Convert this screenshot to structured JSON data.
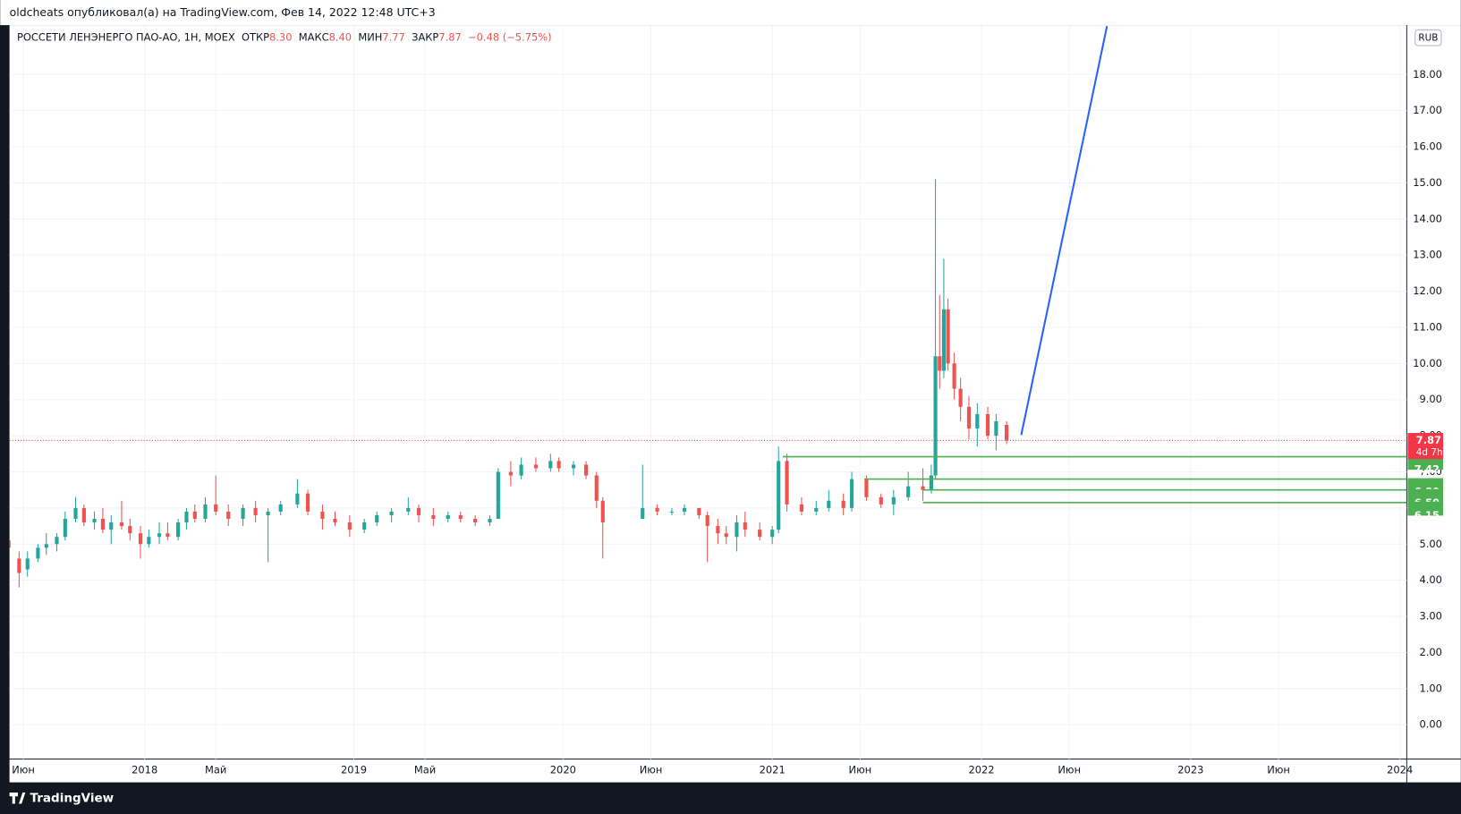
{
  "header": "oldcheats опубликовал(а) на TradingView.com, Фев 14, 2022 12:48 UTC+3",
  "footer": "TradingView",
  "chart_data": {
    "type": "candlestick",
    "title": "РОССЕТИ ЛЕНЭНЕРГО ПАО-АО, 1Н, MOEX",
    "legend": {
      "labels": [
        "ОТКР",
        "МАКС",
        "МИН",
        "ЗАКР"
      ],
      "values": [
        "8.30",
        "8.40",
        "7.77",
        "7.87"
      ],
      "change": "−0.48 (−5.75%)"
    },
    "currency": "RUB",
    "up_color": "#26a69a",
    "down_color": "#ef5350",
    "grid": true,
    "xlim": [
      2017.354,
      2024.033
    ],
    "xticks": [
      {
        "value": 2017.42,
        "label": "Июн"
      },
      {
        "value": 2018,
        "label": "2018"
      },
      {
        "value": 2018.34,
        "label": "Май"
      },
      {
        "value": 2019,
        "label": "2019"
      },
      {
        "value": 2019.34,
        "label": "Май"
      },
      {
        "value": 2020,
        "label": "2020"
      },
      {
        "value": 2020.42,
        "label": "Июн"
      },
      {
        "value": 2021,
        "label": "2021"
      },
      {
        "value": 2021.42,
        "label": "Июн"
      },
      {
        "value": 2022,
        "label": "2022"
      },
      {
        "value": 2022.42,
        "label": "Июн"
      },
      {
        "value": 2023,
        "label": "2023"
      },
      {
        "value": 2023.42,
        "label": "Июн"
      },
      {
        "value": 2024,
        "label": "2024"
      }
    ],
    "ylim": [
      -0.95,
      19.34
    ],
    "yticks": [
      {
        "value": 0,
        "label": "0.00"
      },
      {
        "value": 1,
        "label": "1.00"
      },
      {
        "value": 2,
        "label": "2.00"
      },
      {
        "value": 3,
        "label": "3.00"
      },
      {
        "value": 4,
        "label": "4.00"
      },
      {
        "value": 5,
        "label": "5.00"
      },
      {
        "value": 6,
        "label": "6.00"
      },
      {
        "value": 7,
        "label": "7.00"
      },
      {
        "value": 8,
        "label": "8.00"
      },
      {
        "value": 9,
        "label": "9.00"
      },
      {
        "value": 10,
        "label": "10.00"
      },
      {
        "value": 11,
        "label": "11.00"
      },
      {
        "value": 12,
        "label": "12.00"
      },
      {
        "value": 13,
        "label": "13.00"
      },
      {
        "value": 14,
        "label": "14.00"
      },
      {
        "value": 15,
        "label": "15.00"
      },
      {
        "value": 16,
        "label": "16.00"
      },
      {
        "value": 17,
        "label": "17.00"
      },
      {
        "value": 18,
        "label": "18.00"
      }
    ],
    "candles": [
      {
        "x": 2017.35,
        "open": 5.1,
        "high": 5.2,
        "low": 4.7,
        "close": 4.9
      },
      {
        "x": 2017.4,
        "open": 4.6,
        "high": 4.8,
        "low": 3.8,
        "close": 4.2
      },
      {
        "x": 2017.44,
        "open": 4.3,
        "high": 4.8,
        "low": 4.1,
        "close": 4.6
      },
      {
        "x": 2017.49,
        "open": 4.6,
        "high": 5.0,
        "low": 4.5,
        "close": 4.9
      },
      {
        "x": 2017.53,
        "open": 4.9,
        "high": 5.3,
        "low": 4.7,
        "close": 5.0
      },
      {
        "x": 2017.58,
        "open": 5.0,
        "high": 5.3,
        "low": 4.8,
        "close": 5.2
      },
      {
        "x": 2017.62,
        "open": 5.2,
        "high": 5.9,
        "low": 5.1,
        "close": 5.7
      },
      {
        "x": 2017.67,
        "open": 5.7,
        "high": 6.3,
        "low": 5.6,
        "close": 6.0
      },
      {
        "x": 2017.71,
        "open": 6.0,
        "high": 6.1,
        "low": 5.5,
        "close": 5.6
      },
      {
        "x": 2017.76,
        "open": 5.6,
        "high": 5.9,
        "low": 5.4,
        "close": 5.7
      },
      {
        "x": 2017.8,
        "open": 5.7,
        "high": 6.0,
        "low": 5.3,
        "close": 5.4
      },
      {
        "x": 2017.84,
        "open": 5.4,
        "high": 5.8,
        "low": 5.0,
        "close": 5.6
      },
      {
        "x": 2017.89,
        "open": 5.6,
        "high": 6.2,
        "low": 5.4,
        "close": 5.5
      },
      {
        "x": 2017.93,
        "open": 5.5,
        "high": 5.7,
        "low": 5.1,
        "close": 5.3
      },
      {
        "x": 2017.98,
        "open": 5.3,
        "high": 5.5,
        "low": 4.6,
        "close": 5.0
      },
      {
        "x": 2018.02,
        "open": 5.0,
        "high": 5.4,
        "low": 4.9,
        "close": 5.2
      },
      {
        "x": 2018.07,
        "open": 5.2,
        "high": 5.6,
        "low": 5.0,
        "close": 5.3
      },
      {
        "x": 2018.11,
        "open": 5.3,
        "high": 5.6,
        "low": 5.1,
        "close": 5.2
      },
      {
        "x": 2018.16,
        "open": 5.2,
        "high": 5.7,
        "low": 5.1,
        "close": 5.6
      },
      {
        "x": 2018.2,
        "open": 5.6,
        "high": 6.0,
        "low": 5.4,
        "close": 5.9
      },
      {
        "x": 2018.24,
        "open": 5.9,
        "high": 6.1,
        "low": 5.6,
        "close": 5.7
      },
      {
        "x": 2018.29,
        "open": 5.7,
        "high": 6.3,
        "low": 5.6,
        "close": 6.1
      },
      {
        "x": 2018.34,
        "open": 6.1,
        "high": 6.9,
        "low": 5.8,
        "close": 5.9
      },
      {
        "x": 2018.4,
        "open": 5.9,
        "high": 6.1,
        "low": 5.5,
        "close": 5.7
      },
      {
        "x": 2018.47,
        "open": 5.7,
        "high": 6.1,
        "low": 5.5,
        "close": 6.0
      },
      {
        "x": 2018.53,
        "open": 6.0,
        "high": 6.2,
        "low": 5.6,
        "close": 5.8
      },
      {
        "x": 2018.59,
        "open": 5.8,
        "high": 6.0,
        "low": 4.5,
        "close": 5.9
      },
      {
        "x": 2018.65,
        "open": 5.9,
        "high": 6.2,
        "low": 5.8,
        "close": 6.1
      },
      {
        "x": 2018.73,
        "open": 6.1,
        "high": 6.8,
        "low": 6.0,
        "close": 6.4
      },
      {
        "x": 2018.78,
        "open": 6.4,
        "high": 6.5,
        "low": 5.8,
        "close": 5.9
      },
      {
        "x": 2018.85,
        "open": 5.9,
        "high": 6.1,
        "low": 5.4,
        "close": 5.7
      },
      {
        "x": 2018.91,
        "open": 5.7,
        "high": 5.9,
        "low": 5.5,
        "close": 5.6
      },
      {
        "x": 2018.98,
        "open": 5.6,
        "high": 5.8,
        "low": 5.2,
        "close": 5.4
      },
      {
        "x": 2019.05,
        "open": 5.4,
        "high": 5.7,
        "low": 5.3,
        "close": 5.6
      },
      {
        "x": 2019.11,
        "open": 5.6,
        "high": 5.9,
        "low": 5.5,
        "close": 5.8
      },
      {
        "x": 2019.18,
        "open": 5.8,
        "high": 6.0,
        "low": 5.6,
        "close": 5.9
      },
      {
        "x": 2019.26,
        "open": 5.9,
        "high": 6.3,
        "low": 5.8,
        "close": 6.0
      },
      {
        "x": 2019.31,
        "open": 6.0,
        "high": 6.1,
        "low": 5.6,
        "close": 5.8
      },
      {
        "x": 2019.38,
        "open": 5.8,
        "high": 6.0,
        "low": 5.5,
        "close": 5.7
      },
      {
        "x": 2019.45,
        "open": 5.7,
        "high": 5.9,
        "low": 5.6,
        "close": 5.8
      },
      {
        "x": 2019.51,
        "open": 5.8,
        "high": 5.9,
        "low": 5.6,
        "close": 5.7
      },
      {
        "x": 2019.58,
        "open": 5.7,
        "high": 5.8,
        "low": 5.5,
        "close": 5.6
      },
      {
        "x": 2019.65,
        "open": 5.6,
        "high": 5.8,
        "low": 5.5,
        "close": 5.7
      },
      {
        "x": 2019.69,
        "open": 5.7,
        "high": 7.1,
        "low": 5.7,
        "close": 7.0
      },
      {
        "x": 2019.75,
        "open": 7.0,
        "high": 7.3,
        "low": 6.6,
        "close": 6.9
      },
      {
        "x": 2019.8,
        "open": 6.9,
        "high": 7.4,
        "low": 6.8,
        "close": 7.2
      },
      {
        "x": 2019.87,
        "open": 7.2,
        "high": 7.4,
        "low": 7.0,
        "close": 7.1
      },
      {
        "x": 2019.94,
        "open": 7.1,
        "high": 7.5,
        "low": 7.0,
        "close": 7.3
      },
      {
        "x": 2019.98,
        "open": 7.3,
        "high": 7.4,
        "low": 7.0,
        "close": 7.1
      },
      {
        "x": 2020.05,
        "open": 7.1,
        "high": 7.3,
        "low": 6.9,
        "close": 7.2
      },
      {
        "x": 2020.11,
        "open": 7.2,
        "high": 7.3,
        "low": 6.8,
        "close": 6.9
      },
      {
        "x": 2020.16,
        "open": 6.9,
        "high": 7.0,
        "low": 6.0,
        "close": 6.2
      },
      {
        "x": 2020.19,
        "open": 6.2,
        "high": 6.3,
        "low": 4.6,
        "close": 5.6
      },
      {
        "x": 2020.38,
        "open": 5.7,
        "high": 7.2,
        "low": 5.7,
        "close": 6.0
      },
      {
        "x": 2020.45,
        "open": 6.0,
        "high": 6.1,
        "low": 5.8,
        "close": 5.9
      },
      {
        "x": 2020.52,
        "open": 5.9,
        "high": 6.0,
        "low": 5.8,
        "close": 5.9
      },
      {
        "x": 2020.58,
        "open": 5.9,
        "high": 6.1,
        "low": 5.8,
        "close": 6.0
      },
      {
        "x": 2020.65,
        "open": 6.0,
        "high": 6.0,
        "low": 5.7,
        "close": 5.8
      },
      {
        "x": 2020.69,
        "open": 5.8,
        "high": 5.9,
        "low": 4.5,
        "close": 5.5
      },
      {
        "x": 2020.74,
        "open": 5.5,
        "high": 5.7,
        "low": 5.0,
        "close": 5.3
      },
      {
        "x": 2020.78,
        "open": 5.3,
        "high": 5.5,
        "low": 5.0,
        "close": 5.2
      },
      {
        "x": 2020.83,
        "open": 5.2,
        "high": 5.8,
        "low": 4.8,
        "close": 5.6
      },
      {
        "x": 2020.87,
        "open": 5.6,
        "high": 5.9,
        "low": 5.2,
        "close": 5.4
      },
      {
        "x": 2020.94,
        "open": 5.4,
        "high": 5.6,
        "low": 5.1,
        "close": 5.2
      },
      {
        "x": 2021.0,
        "open": 5.2,
        "high": 5.5,
        "low": 5.0,
        "close": 5.4
      },
      {
        "x": 2021.03,
        "open": 5.4,
        "high": 7.7,
        "low": 5.3,
        "close": 7.3
      },
      {
        "x": 2021.07,
        "open": 7.3,
        "high": 7.5,
        "low": 5.9,
        "close": 6.1
      },
      {
        "x": 2021.14,
        "open": 6.1,
        "high": 6.3,
        "low": 5.8,
        "close": 5.9
      },
      {
        "x": 2021.21,
        "open": 5.9,
        "high": 6.2,
        "low": 5.8,
        "close": 6.0
      },
      {
        "x": 2021.27,
        "open": 6.0,
        "high": 6.5,
        "low": 5.9,
        "close": 6.2
      },
      {
        "x": 2021.34,
        "open": 6.2,
        "high": 6.4,
        "low": 5.8,
        "close": 6.0
      },
      {
        "x": 2021.38,
        "open": 6.0,
        "high": 7.0,
        "low": 5.9,
        "close": 6.8
      },
      {
        "x": 2021.45,
        "open": 6.8,
        "high": 6.9,
        "low": 6.2,
        "close": 6.3
      },
      {
        "x": 2021.52,
        "open": 6.3,
        "high": 6.4,
        "low": 6.0,
        "close": 6.1
      },
      {
        "x": 2021.58,
        "open": 6.1,
        "high": 6.5,
        "low": 5.8,
        "close": 6.3
      },
      {
        "x": 2021.65,
        "open": 6.3,
        "high": 7.0,
        "low": 6.2,
        "close": 6.6
      },
      {
        "x": 2021.72,
        "open": 6.6,
        "high": 7.1,
        "low": 6.2,
        "close": 6.5
      },
      {
        "x": 2021.76,
        "open": 6.5,
        "high": 7.2,
        "low": 6.4,
        "close": 6.9
      },
      {
        "x": 2021.78,
        "open": 6.9,
        "high": 15.1,
        "low": 6.8,
        "close": 10.2
      },
      {
        "x": 2021.8,
        "open": 10.2,
        "high": 11.9,
        "low": 9.3,
        "close": 9.8
      },
      {
        "x": 2021.82,
        "open": 9.8,
        "high": 12.9,
        "low": 9.6,
        "close": 11.5
      },
      {
        "x": 2021.84,
        "open": 11.5,
        "high": 11.8,
        "low": 9.8,
        "close": 10.0
      },
      {
        "x": 2021.87,
        "open": 10.0,
        "high": 10.3,
        "low": 9.0,
        "close": 9.3
      },
      {
        "x": 2021.9,
        "open": 9.3,
        "high": 9.6,
        "low": 8.4,
        "close": 8.8
      },
      {
        "x": 2021.94,
        "open": 8.8,
        "high": 9.1,
        "low": 7.9,
        "close": 8.2
      },
      {
        "x": 2021.98,
        "open": 8.2,
        "high": 8.9,
        "low": 7.7,
        "close": 8.6
      },
      {
        "x": 2022.03,
        "open": 8.6,
        "high": 8.8,
        "low": 7.9,
        "close": 8.0
      },
      {
        "x": 2022.07,
        "open": 8.0,
        "high": 8.6,
        "low": 7.6,
        "close": 8.4
      },
      {
        "x": 2022.12,
        "open": 8.3,
        "high": 8.4,
        "low": 7.77,
        "close": 7.87
      }
    ],
    "levels": {
      "values": [
        7.42,
        6.8,
        6.5,
        6.15
      ],
      "value_labels": [
        "7.42",
        "6.80",
        "6.50",
        "6.15"
      ],
      "from": [
        2021.05,
        2021.44,
        2021.72,
        2021.72
      ],
      "color": "#4caf50"
    },
    "last_price": 7.87,
    "countdown": "4d 7h",
    "last_price_color": "#f23645",
    "trend_line": {
      "x": [
        2022.19,
        2022.6
      ],
      "y": [
        8.02,
        19.34
      ],
      "color": "#2962ff"
    }
  }
}
